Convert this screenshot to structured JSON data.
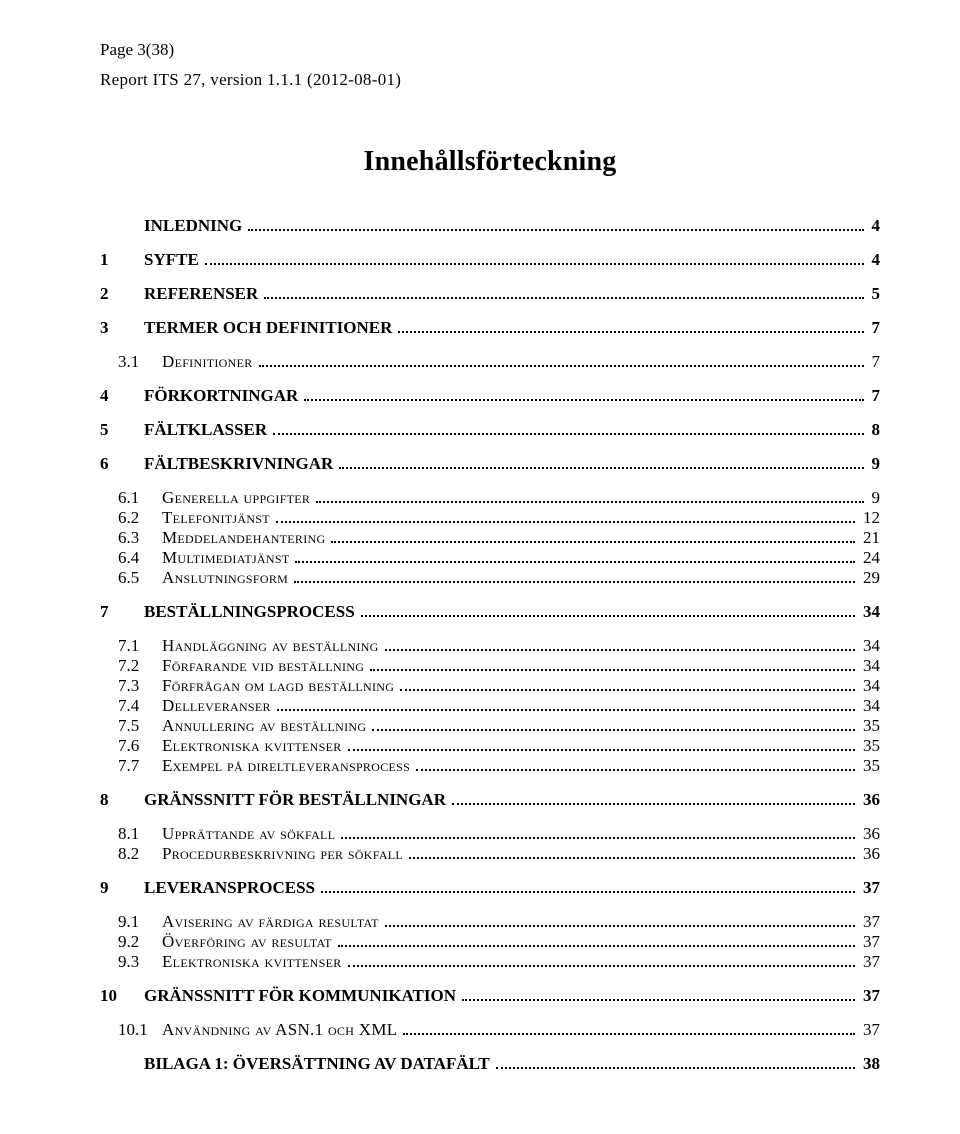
{
  "header": {
    "page_label": "Page 3(38)",
    "report_line": "Report ITS 27, version 1.1.1 (2012-08-01)"
  },
  "toc_title": "Innehållsförteckning",
  "entries": [
    {
      "num": "",
      "label": "INLEDNING",
      "page": "4",
      "bold": true,
      "sub": false,
      "smallcaps": false,
      "gap_before": false
    },
    {
      "num": "1",
      "label": "SYFTE",
      "page": "4",
      "bold": true,
      "sub": false,
      "smallcaps": false,
      "gap_before": true
    },
    {
      "num": "2",
      "label": "REFERENSER",
      "page": "5",
      "bold": true,
      "sub": false,
      "smallcaps": false,
      "gap_before": true
    },
    {
      "num": "3",
      "label": "TERMER OCH DEFINITIONER",
      "page": "7",
      "bold": true,
      "sub": false,
      "smallcaps": false,
      "gap_before": true
    },
    {
      "num": "3.1",
      "label": "Definitioner",
      "page": "7",
      "bold": false,
      "sub": true,
      "smallcaps": true,
      "gap_before": true
    },
    {
      "num": "4",
      "label": "FÖRKORTNINGAR",
      "page": "7",
      "bold": true,
      "sub": false,
      "smallcaps": false,
      "gap_before": true
    },
    {
      "num": "5",
      "label": "FÄLTKLASSER",
      "page": "8",
      "bold": true,
      "sub": false,
      "smallcaps": false,
      "gap_before": true
    },
    {
      "num": "6",
      "label": "FÄLTBESKRIVNINGAR",
      "page": "9",
      "bold": true,
      "sub": false,
      "smallcaps": false,
      "gap_before": true
    },
    {
      "num": "6.1",
      "label": "Generella uppgifter",
      "page": "9",
      "bold": false,
      "sub": true,
      "smallcaps": true,
      "gap_before": true
    },
    {
      "num": "6.2",
      "label": "Telefonitjänst",
      "page": "12",
      "bold": false,
      "sub": true,
      "smallcaps": true,
      "gap_before": false
    },
    {
      "num": "6.3",
      "label": "Meddelandehantering",
      "page": "21",
      "bold": false,
      "sub": true,
      "smallcaps": true,
      "gap_before": false
    },
    {
      "num": "6.4",
      "label": "Multimediatjänst",
      "page": "24",
      "bold": false,
      "sub": true,
      "smallcaps": true,
      "gap_before": false
    },
    {
      "num": "6.5",
      "label": "Anslutningsform",
      "page": "29",
      "bold": false,
      "sub": true,
      "smallcaps": true,
      "gap_before": false
    },
    {
      "num": "7",
      "label": "BESTÄLLNINGSPROCESS",
      "page": "34",
      "bold": true,
      "sub": false,
      "smallcaps": false,
      "gap_before": true
    },
    {
      "num": "7.1",
      "label": "Handläggning av beställning",
      "page": "34",
      "bold": false,
      "sub": true,
      "smallcaps": true,
      "gap_before": true
    },
    {
      "num": "7.2",
      "label": "Förfarande vid beställning",
      "page": "34",
      "bold": false,
      "sub": true,
      "smallcaps": true,
      "gap_before": false
    },
    {
      "num": "7.3",
      "label": "Förfrågan om lagd beställning",
      "page": "34",
      "bold": false,
      "sub": true,
      "smallcaps": true,
      "gap_before": false
    },
    {
      "num": "7.4",
      "label": "Delleveranser",
      "page": "34",
      "bold": false,
      "sub": true,
      "smallcaps": true,
      "gap_before": false
    },
    {
      "num": "7.5",
      "label": "Annullering av beställning",
      "page": "35",
      "bold": false,
      "sub": true,
      "smallcaps": true,
      "gap_before": false
    },
    {
      "num": "7.6",
      "label": "Elektroniska kvittenser",
      "page": "35",
      "bold": false,
      "sub": true,
      "smallcaps": true,
      "gap_before": false
    },
    {
      "num": "7.7",
      "label": "Exempel på direltleveransprocess",
      "page": "35",
      "bold": false,
      "sub": true,
      "smallcaps": true,
      "gap_before": false
    },
    {
      "num": "8",
      "label": "GRÄNSSNITT FÖR BESTÄLLNINGAR",
      "page": "36",
      "bold": true,
      "sub": false,
      "smallcaps": false,
      "gap_before": true
    },
    {
      "num": "8.1",
      "label": "Upprättande av sökfall",
      "page": "36",
      "bold": false,
      "sub": true,
      "smallcaps": true,
      "gap_before": true
    },
    {
      "num": "8.2",
      "label": "Procedurbeskrivning per sökfall",
      "page": "36",
      "bold": false,
      "sub": true,
      "smallcaps": true,
      "gap_before": false
    },
    {
      "num": "9",
      "label": "LEVERANSPROCESS",
      "page": "37",
      "bold": true,
      "sub": false,
      "smallcaps": false,
      "gap_before": true
    },
    {
      "num": "9.1",
      "label": "Avisering av färdiga resultat",
      "page": "37",
      "bold": false,
      "sub": true,
      "smallcaps": true,
      "gap_before": true
    },
    {
      "num": "9.2",
      "label": "Överföring av resultat",
      "page": "37",
      "bold": false,
      "sub": true,
      "smallcaps": true,
      "gap_before": false
    },
    {
      "num": "9.3",
      "label": "Elektroniska kvittenser",
      "page": "37",
      "bold": false,
      "sub": true,
      "smallcaps": true,
      "gap_before": false
    },
    {
      "num": "10",
      "label": "GRÄNSSNITT FÖR KOMMUNIKATION",
      "page": "37",
      "bold": true,
      "sub": false,
      "smallcaps": false,
      "gap_before": true
    },
    {
      "num": "10.1",
      "label": "Användning av ASN.1 och XML",
      "page": "37",
      "bold": false,
      "sub": true,
      "smallcaps": true,
      "gap_before": true
    },
    {
      "num": "",
      "label": "BILAGA 1: ÖVERSÄTTNING AV DATAFÄLT",
      "page": "38",
      "bold": true,
      "sub": false,
      "smallcaps": false,
      "gap_before": true
    }
  ]
}
